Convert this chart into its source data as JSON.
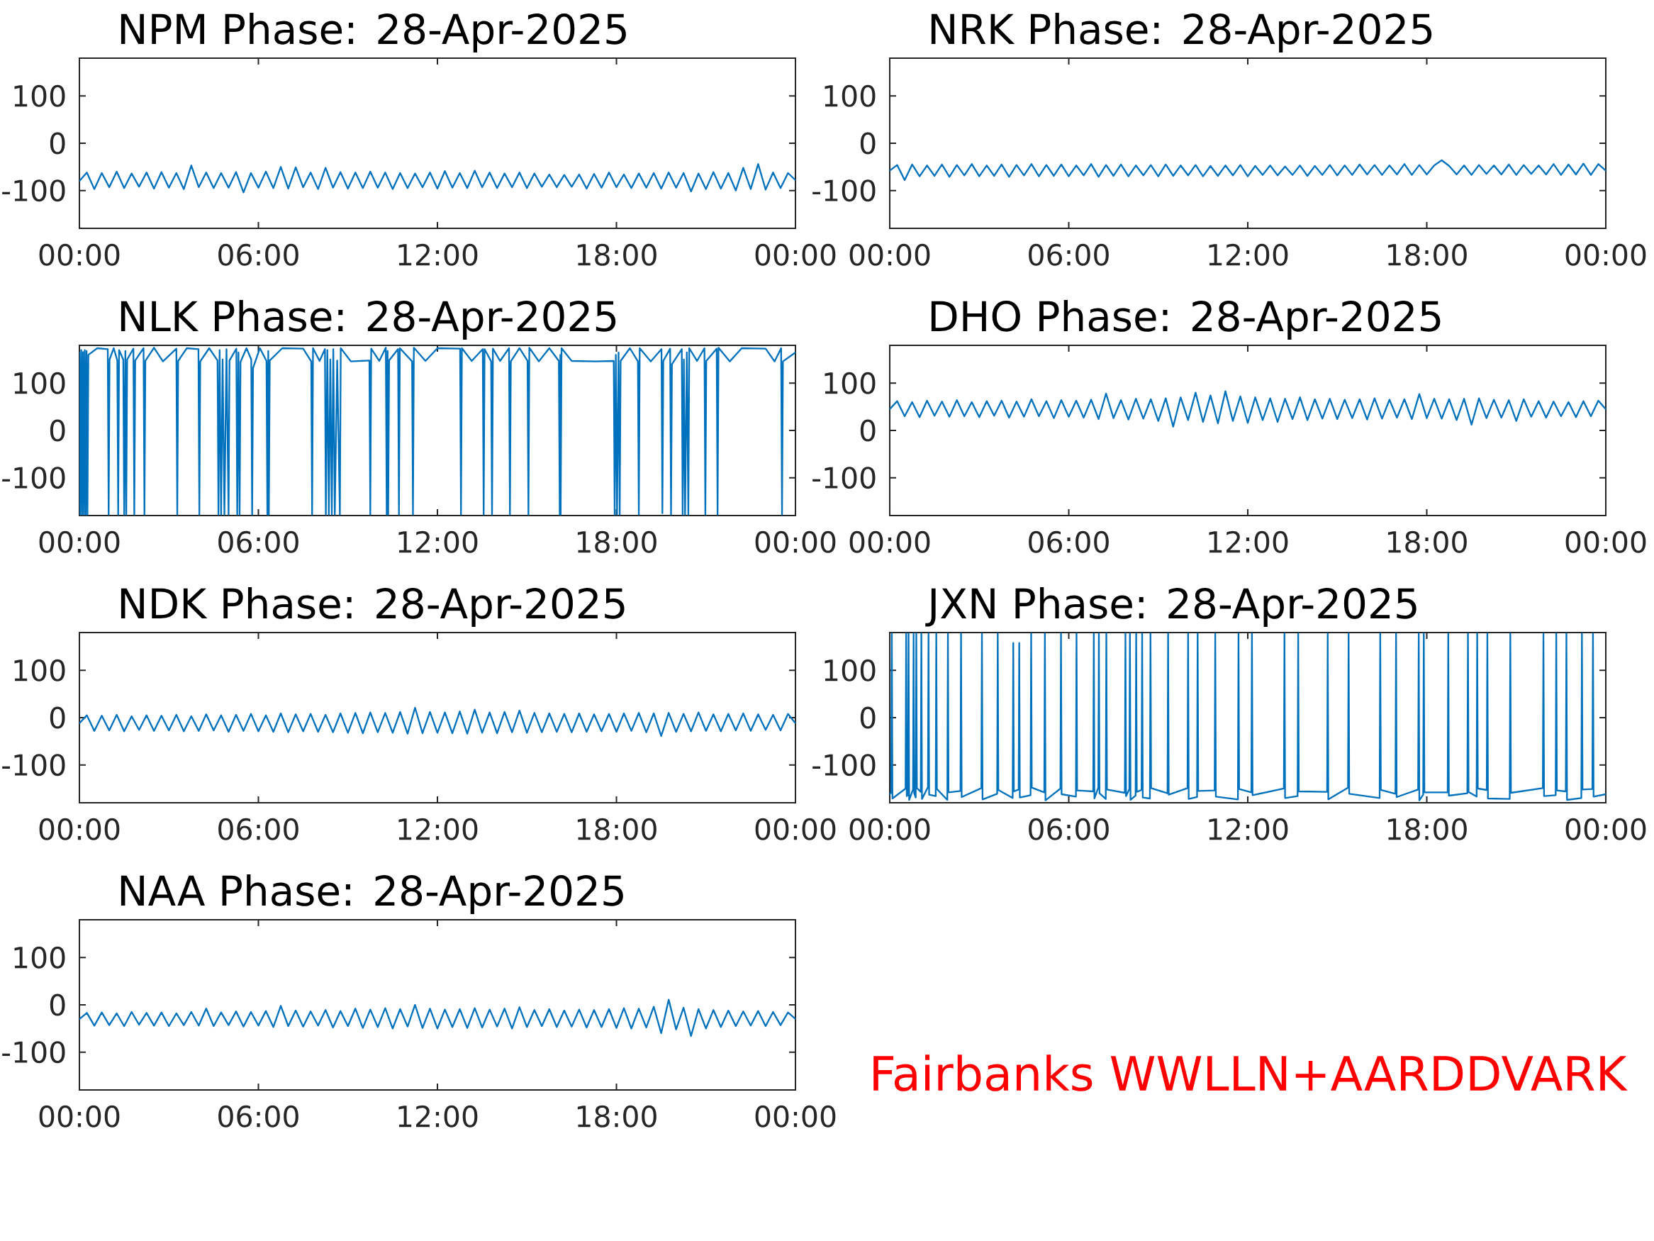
{
  "chart_data": [
    {
      "type": "line",
      "title": "NPM Phase: 28-Apr-2025",
      "color": "#0072bd",
      "xlim": [
        0,
        24
      ],
      "xticks": [
        {
          "value": 0,
          "label": "00:00"
        },
        {
          "value": 6,
          "label": "06:00"
        },
        {
          "value": 12,
          "label": "12:00"
        },
        {
          "value": 18,
          "label": "18:00"
        },
        {
          "value": 24,
          "label": "00:00"
        }
      ],
      "ylim": [
        -180,
        180
      ],
      "yticks": [
        -100,
        0,
        100
      ],
      "x": [
        0,
        0.25,
        0.5,
        0.75,
        1,
        1.25,
        1.5,
        1.75,
        2,
        2.25,
        2.5,
        2.75,
        3,
        3.25,
        3.5,
        3.75,
        4,
        4.25,
        4.5,
        4.75,
        5,
        5.25,
        5.5,
        5.75,
        6,
        6.25,
        6.5,
        6.75,
        7,
        7.25,
        7.5,
        7.75,
        8,
        8.25,
        8.5,
        8.75,
        9,
        9.25,
        9.5,
        9.75,
        10,
        10.25,
        10.5,
        10.75,
        11,
        11.25,
        11.5,
        11.75,
        12,
        12.25,
        12.5,
        12.75,
        13,
        13.25,
        13.5,
        13.75,
        14,
        14.25,
        14.5,
        14.75,
        15,
        15.25,
        15.5,
        15.75,
        16,
        16.25,
        16.5,
        16.75,
        17,
        17.25,
        17.5,
        17.75,
        18,
        18.25,
        18.5,
        18.75,
        19,
        19.25,
        19.5,
        19.75,
        20,
        20.25,
        20.5,
        20.75,
        21,
        21.25,
        21.5,
        21.75,
        22,
        22.25,
        22.5,
        22.75,
        23,
        23.25,
        23.5,
        23.75,
        24
      ],
      "values": [
        -80,
        -62,
        -97,
        -63,
        -93,
        -60,
        -95,
        -64,
        -92,
        -62,
        -96,
        -61,
        -94,
        -63,
        -97,
        -47,
        -93,
        -62,
        -95,
        -63,
        -94,
        -61,
        -104,
        -63,
        -94,
        -60,
        -95,
        -50,
        -96,
        -51,
        -93,
        -62,
        -97,
        -52,
        -94,
        -61,
        -96,
        -62,
        -95,
        -60,
        -94,
        -62,
        -97,
        -63,
        -95,
        -64,
        -93,
        -62,
        -96,
        -59,
        -94,
        -63,
        -95,
        -58,
        -93,
        -62,
        -95,
        -64,
        -93,
        -62,
        -95,
        -64,
        -92,
        -66,
        -93,
        -67,
        -92,
        -66,
        -96,
        -65,
        -94,
        -62,
        -93,
        -66,
        -95,
        -64,
        -94,
        -63,
        -96,
        -62,
        -94,
        -63,
        -102,
        -64,
        -97,
        -61,
        -96,
        -63,
        -100,
        -52,
        -97,
        -44,
        -98,
        -62,
        -95,
        -63,
        -78
      ]
    },
    {
      "type": "line",
      "title": "NRK Phase: 28-Apr-2025",
      "color": "#0072bd",
      "xlim": [
        0,
        24
      ],
      "xticks": [
        {
          "value": 0,
          "label": "00:00"
        },
        {
          "value": 6,
          "label": "06:00"
        },
        {
          "value": 12,
          "label": "12:00"
        },
        {
          "value": 18,
          "label": "18:00"
        },
        {
          "value": 24,
          "label": "00:00"
        }
      ],
      "ylim": [
        -180,
        180
      ],
      "yticks": [
        -100,
        0,
        100
      ],
      "x": [
        0,
        0.25,
        0.5,
        0.75,
        1,
        1.25,
        1.5,
        1.75,
        2,
        2.25,
        2.5,
        2.75,
        3,
        3.25,
        3.5,
        3.75,
        4,
        4.25,
        4.5,
        4.75,
        5,
        5.25,
        5.5,
        5.75,
        6,
        6.25,
        6.5,
        6.75,
        7,
        7.25,
        7.5,
        7.75,
        8,
        8.25,
        8.5,
        8.75,
        9,
        9.25,
        9.5,
        9.75,
        10,
        10.25,
        10.5,
        10.75,
        11,
        11.25,
        11.5,
        11.75,
        12,
        12.25,
        12.5,
        12.75,
        13,
        13.25,
        13.5,
        13.75,
        14,
        14.25,
        14.5,
        14.75,
        15,
        15.25,
        15.5,
        15.75,
        16,
        16.25,
        16.5,
        16.75,
        17,
        17.25,
        17.5,
        17.75,
        18,
        18.25,
        18.5,
        18.75,
        19,
        19.25,
        19.5,
        19.75,
        20,
        20.25,
        20.5,
        20.75,
        21,
        21.25,
        21.5,
        21.75,
        22,
        22.25,
        22.5,
        22.75,
        23,
        23.25,
        23.5,
        23.75,
        24
      ],
      "values": [
        -58,
        -46,
        -78,
        -45,
        -70,
        -47,
        -69,
        -45,
        -71,
        -46,
        -68,
        -44,
        -70,
        -47,
        -69,
        -45,
        -71,
        -46,
        -68,
        -44,
        -70,
        -46,
        -69,
        -45,
        -70,
        -47,
        -68,
        -44,
        -71,
        -46,
        -69,
        -45,
        -70,
        -47,
        -68,
        -46,
        -70,
        -45,
        -69,
        -47,
        -68,
        -46,
        -70,
        -48,
        -69,
        -47,
        -68,
        -46,
        -70,
        -48,
        -67,
        -47,
        -68,
        -49,
        -67,
        -47,
        -69,
        -48,
        -67,
        -46,
        -68,
        -47,
        -67,
        -45,
        -66,
        -46,
        -67,
        -47,
        -66,
        -44,
        -67,
        -46,
        -66,
        -47,
        -36,
        -48,
        -66,
        -47,
        -67,
        -46,
        -65,
        -47,
        -66,
        -45,
        -67,
        -46,
        -65,
        -47,
        -66,
        -44,
        -67,
        -45,
        -66,
        -43,
        -67,
        -44,
        -58
      ]
    },
    {
      "type": "line",
      "title": "NLK Phase: 28-Apr-2025",
      "color": "#0072bd",
      "xlim": [
        0,
        24
      ],
      "xticks": [
        {
          "value": 0,
          "label": "00:00"
        },
        {
          "value": 6,
          "label": "06:00"
        },
        {
          "value": 12,
          "label": "12:00"
        },
        {
          "value": 18,
          "label": "18:00"
        },
        {
          "value": 24,
          "label": "00:00"
        }
      ],
      "ylim": [
        -180,
        180
      ],
      "yticks": [
        -100,
        0,
        100
      ],
      "x": [
        0,
        0.03,
        0.06,
        0.09,
        0.12,
        0.15,
        0.18,
        0.21,
        0.24,
        0.27,
        0.3,
        0.6,
        0.95,
        0.98,
        1.01,
        1.15,
        1.27,
        1.3,
        1.33,
        1.47,
        1.5,
        1.54,
        1.57,
        1.6,
        1.81,
        1.84,
        1.87,
        2.15,
        2.18,
        2.21,
        2.5,
        2.8,
        3.25,
        3.28,
        3.31,
        3.6,
        3.99,
        4.02,
        4.05,
        4.35,
        4.63,
        4.66,
        4.7,
        4.75,
        4.8,
        4.86,
        4.93,
        5.0,
        5.03,
        5.26,
        5.29,
        5.33,
        5.37,
        5.4,
        5.6,
        5.76,
        5.79,
        5.82,
        6.05,
        6.27,
        6.3,
        6.33,
        6.35,
        6.38,
        6.8,
        7.5,
        7.77,
        7.8,
        7.83,
        8.05,
        8.23,
        8.26,
        8.31,
        8.36,
        8.41,
        8.46,
        8.51,
        8.56,
        8.64,
        8.73,
        8.76,
        9.1,
        9.72,
        9.75,
        9.78,
        10.05,
        10.27,
        10.3,
        10.33,
        10.35,
        10.38,
        10.68,
        10.71,
        10.74,
        11.15,
        11.18,
        11.21,
        11.6,
        12.0,
        12.76,
        12.79,
        12.82,
        13.15,
        13.52,
        13.55,
        13.58,
        13.8,
        13.83,
        13.86,
        14.1,
        14.4,
        14.43,
        14.46,
        14.75,
        15.02,
        15.05,
        15.08,
        15.4,
        15.75,
        16.07,
        16.1,
        16.12,
        16.13,
        16.16,
        16.5,
        17.3,
        17.91,
        17.94,
        17.98,
        18.02,
        18.07,
        18.11,
        18.14,
        18.45,
        18.72,
        18.75,
        18.78,
        19.15,
        19.51,
        19.54,
        19.57,
        19.8,
        19.83,
        19.86,
        20.19,
        20.22,
        20.26,
        20.3,
        20.36,
        20.41,
        20.44,
        20.7,
        20.95,
        20.98,
        21.01,
        21.36,
        21.39,
        21.42,
        21.8,
        22.2,
        23.0,
        23.3,
        23.52,
        23.55,
        23.58,
        24
      ],
      "values": [
        165,
        -178,
        170,
        -178,
        166,
        -178,
        170,
        -178,
        168,
        -178,
        160,
        174,
        172,
        -178,
        150,
        174,
        148,
        -178,
        170,
        150,
        -178,
        168,
        -178,
        150,
        173,
        -178,
        148,
        174,
        -178,
        147,
        175,
        146,
        173,
        -178,
        147,
        174,
        172,
        -178,
        146,
        174,
        148,
        -178,
        170,
        -178,
        150,
        -178,
        172,
        -178,
        148,
        173,
        -178,
        165,
        -178,
        145,
        174,
        150,
        -178,
        132,
        174,
        147,
        -178,
        168,
        -178,
        148,
        174,
        173,
        146,
        -178,
        174,
        147,
        172,
        -178,
        170,
        -178,
        150,
        -178,
        172,
        -178,
        148,
        -178,
        174,
        146,
        148,
        -178,
        173,
        147,
        175,
        -178,
        168,
        -178,
        148,
        172,
        -178,
        174,
        146,
        -178,
        175,
        147,
        174,
        173,
        -178,
        174,
        147,
        172,
        -178,
        172,
        146,
        -178,
        173,
        147,
        174,
        -178,
        146,
        174,
        147,
        -178,
        175,
        146,
        174,
        147,
        -178,
        160,
        -178,
        174,
        147,
        146,
        147,
        -178,
        160,
        -178,
        165,
        -178,
        147,
        174,
        146,
        -178,
        174,
        146,
        172,
        -175,
        147,
        173,
        -178,
        140,
        172,
        -178,
        150,
        -178,
        165,
        -178,
        174,
        147,
        174,
        -178,
        147,
        173,
        -178,
        175,
        146,
        174,
        173,
        146,
        174,
        -178,
        146,
        165
      ]
    },
    {
      "type": "line",
      "title": "DHO Phase: 28-Apr-2025",
      "color": "#0072bd",
      "xlim": [
        0,
        24
      ],
      "xticks": [
        {
          "value": 0,
          "label": "00:00"
        },
        {
          "value": 6,
          "label": "06:00"
        },
        {
          "value": 12,
          "label": "12:00"
        },
        {
          "value": 18,
          "label": "18:00"
        },
        {
          "value": 24,
          "label": "00:00"
        }
      ],
      "ylim": [
        -180,
        180
      ],
      "yticks": [
        -100,
        0,
        100
      ],
      "x": [
        0,
        0.25,
        0.5,
        0.75,
        1,
        1.25,
        1.5,
        1.75,
        2,
        2.25,
        2.5,
        2.75,
        3,
        3.25,
        3.5,
        3.75,
        4,
        4.25,
        4.5,
        4.75,
        5,
        5.25,
        5.5,
        5.75,
        6,
        6.25,
        6.5,
        6.75,
        7,
        7.25,
        7.5,
        7.75,
        8,
        8.25,
        8.5,
        8.75,
        9,
        9.25,
        9.5,
        9.75,
        10,
        10.25,
        10.5,
        10.75,
        11,
        11.25,
        11.5,
        11.75,
        12,
        12.25,
        12.5,
        12.75,
        13,
        13.25,
        13.5,
        13.75,
        14,
        14.25,
        14.5,
        14.75,
        15,
        15.25,
        15.5,
        15.75,
        16,
        16.25,
        16.5,
        16.75,
        17,
        17.25,
        17.5,
        17.75,
        18,
        18.25,
        18.5,
        18.75,
        19,
        19.25,
        19.5,
        19.75,
        20,
        20.25,
        20.5,
        20.75,
        21,
        21.25,
        21.5,
        21.75,
        22,
        22.25,
        22.5,
        22.75,
        23,
        23.25,
        23.5,
        23.75,
        24
      ],
      "values": [
        45,
        62,
        30,
        60,
        28,
        63,
        31,
        61,
        29,
        64,
        30,
        60,
        28,
        62,
        31,
        63,
        27,
        61,
        29,
        66,
        30,
        62,
        26,
        64,
        29,
        63,
        27,
        65,
        24,
        78,
        26,
        64,
        23,
        67,
        25,
        66,
        20,
        68,
        8,
        70,
        22,
        80,
        18,
        74,
        15,
        83,
        20,
        72,
        16,
        70,
        22,
        68,
        18,
        67,
        24,
        70,
        22,
        66,
        25,
        67,
        24,
        65,
        26,
        66,
        23,
        68,
        25,
        65,
        27,
        66,
        24,
        77,
        26,
        67,
        25,
        66,
        22,
        67,
        12,
        68,
        26,
        65,
        27,
        64,
        20,
        66,
        29,
        62,
        27,
        61,
        30,
        60,
        28,
        62,
        30,
        63,
        45
      ]
    },
    {
      "type": "line",
      "title": "NDK Phase: 28-Apr-2025",
      "color": "#0072bd",
      "xlim": [
        0,
        24
      ],
      "xticks": [
        {
          "value": 0,
          "label": "00:00"
        },
        {
          "value": 6,
          "label": "06:00"
        },
        {
          "value": 12,
          "label": "12:00"
        },
        {
          "value": 18,
          "label": "18:00"
        },
        {
          "value": 24,
          "label": "00:00"
        }
      ],
      "ylim": [
        -180,
        180
      ],
      "yticks": [
        -100,
        0,
        100
      ],
      "x": [
        0,
        0.25,
        0.5,
        0.75,
        1,
        1.25,
        1.5,
        1.75,
        2,
        2.25,
        2.5,
        2.75,
        3,
        3.25,
        3.5,
        3.75,
        4,
        4.25,
        4.5,
        4.75,
        5,
        5.25,
        5.5,
        5.75,
        6,
        6.25,
        6.5,
        6.75,
        7,
        7.25,
        7.5,
        7.75,
        8,
        8.25,
        8.5,
        8.75,
        9,
        9.25,
        9.5,
        9.75,
        10,
        10.25,
        10.5,
        10.75,
        11,
        11.25,
        11.5,
        11.75,
        12,
        12.25,
        12.5,
        12.75,
        13,
        13.25,
        13.5,
        13.75,
        14,
        14.25,
        14.5,
        14.75,
        15,
        15.25,
        15.5,
        15.75,
        16,
        16.25,
        16.5,
        16.75,
        17,
        17.25,
        17.5,
        17.75,
        18,
        18.25,
        18.5,
        18.75,
        19,
        19.25,
        19.5,
        19.75,
        20,
        20.25,
        20.5,
        20.75,
        21,
        21.25,
        21.5,
        21.75,
        22,
        22.25,
        22.5,
        22.75,
        23,
        23.25,
        23.5,
        23.75,
        24
      ],
      "values": [
        -12,
        5,
        -28,
        4,
        -27,
        6,
        -29,
        3,
        -26,
        5,
        -28,
        4,
        -27,
        6,
        -29,
        3,
        -28,
        7,
        -27,
        5,
        -30,
        6,
        -28,
        8,
        -29,
        5,
        -30,
        9,
        -31,
        7,
        -29,
        8,
        -30,
        6,
        -31,
        9,
        -32,
        10,
        -33,
        11,
        -31,
        10,
        -32,
        12,
        -34,
        21,
        -33,
        12,
        -32,
        11,
        -33,
        13,
        -34,
        17,
        -32,
        11,
        -33,
        12,
        -31,
        15,
        -32,
        10,
        -31,
        9,
        -30,
        8,
        -31,
        9,
        -30,
        7,
        -29,
        8,
        -30,
        9,
        -28,
        10,
        -31,
        9,
        -39,
        10,
        -30,
        8,
        -29,
        11,
        -28,
        7,
        -29,
        8,
        -27,
        9,
        -28,
        7,
        -26,
        6,
        -27,
        8,
        -12
      ]
    },
    {
      "type": "line",
      "title": "JXN Phase: 28-Apr-2025",
      "color": "#0072bd",
      "xlim": [
        0,
        24
      ],
      "xticks": [
        {
          "value": 0,
          "label": "00:00"
        },
        {
          "value": 6,
          "label": "06:00"
        },
        {
          "value": 12,
          "label": "12:00"
        },
        {
          "value": 18,
          "label": "18:00"
        },
        {
          "value": 24,
          "label": "00:00"
        }
      ],
      "ylim": [
        -180,
        180
      ],
      "yticks": [
        -100,
        0,
        100
      ],
      "x": [
        0,
        0.05,
        0.07,
        0.09,
        0.53,
        0.55,
        0.57,
        0.61,
        0.63,
        0.65,
        0.78,
        0.8,
        0.82,
        0.87,
        0.89,
        0.91,
        1.04,
        1.06,
        1.08,
        1.28,
        1.3,
        1.32,
        1.54,
        1.56,
        1.58,
        1.93,
        1.95,
        1.97,
        2.37,
        2.39,
        2.41,
        3.07,
        3.09,
        3.11,
        3.6,
        3.62,
        3.64,
        4.12,
        4.14,
        4.16,
        4.32,
        4.34,
        4.36,
        4.72,
        4.74,
        4.76,
        5.18,
        5.2,
        5.22,
        5.72,
        5.74,
        5.76,
        6.24,
        6.26,
        6.28,
        6.82,
        6.84,
        6.86,
        6.99,
        7.01,
        7.03,
        7.24,
        7.26,
        7.28,
        7.88,
        7.9,
        7.92,
        8.03,
        8.05,
        8.07,
        8.24,
        8.26,
        8.28,
        8.44,
        8.46,
        8.48,
        8.72,
        8.74,
        8.76,
        9.31,
        9.33,
        9.35,
        9.98,
        10,
        10.02,
        10.3,
        10.32,
        10.34,
        10.89,
        10.91,
        10.93,
        11.67,
        11.69,
        11.71,
        12.12,
        12.14,
        12.16,
        13.21,
        13.23,
        13.25,
        13.67,
        13.69,
        13.71,
        14.66,
        14.68,
        14.7,
        15.36,
        15.38,
        15.4,
        16.42,
        16.44,
        16.46,
        16.95,
        16.97,
        16.99,
        17.71,
        17.73,
        17.75,
        17.88,
        17.9,
        17.92,
        18.7,
        18.72,
        18.74,
        19.36,
        19.38,
        19.4,
        19.67,
        19.69,
        19.71,
        20.01,
        20.03,
        20.05,
        20.78,
        20.8,
        20.82,
        21.89,
        21.91,
        21.93,
        22.32,
        22.34,
        22.36,
        22.66,
        22.68,
        22.7,
        23.18,
        23.2,
        23.22,
        23.55,
        23.57,
        23.59,
        24
      ],
      "values": [
        -162,
        -158,
        178,
        -171,
        -150,
        178,
        -166,
        -163,
        178,
        -174,
        -152,
        178,
        -160,
        -169,
        178,
        -149,
        -157,
        178,
        -172,
        -147,
        178,
        -163,
        -166,
        178,
        -151,
        -174,
        178,
        -158,
        -155,
        178,
        -168,
        -149,
        178,
        -173,
        -161,
        178,
        -153,
        -170,
        158,
        -156,
        -152,
        158,
        -169,
        -164,
        178,
        -148,
        -158,
        178,
        -175,
        -150,
        178,
        -162,
        -167,
        178,
        -154,
        -156,
        178,
        -171,
        -148,
        178,
        -160,
        -172,
        178,
        -152,
        -159,
        178,
        -166,
        -151,
        178,
        -174,
        -165,
        178,
        -157,
        -153,
        178,
        -169,
        -171,
        178,
        -149,
        -160,
        178,
        -163,
        -149,
        178,
        -172,
        -168,
        178,
        -155,
        -154,
        178,
        -167,
        -173,
        178,
        -151,
        -158,
        178,
        -164,
        -150,
        178,
        -170,
        -166,
        178,
        -156,
        -157,
        178,
        -173,
        -148,
        178,
        -161,
        -170,
        178,
        -153,
        -161,
        178,
        -168,
        -152,
        178,
        -175,
        -163,
        178,
        -158,
        -158,
        178,
        -165,
        -160,
        178,
        -157,
        -167,
        178,
        -150,
        -153,
        178,
        -171,
        -172,
        178,
        -159,
        -149,
        178,
        -166,
        -164,
        178,
        -154,
        -156,
        178,
        -174,
        -170,
        178,
        -152,
        -151,
        178,
        -167,
        -162
      ]
    },
    {
      "type": "line",
      "title": "NAA Phase: 28-Apr-2025",
      "color": "#0072bd",
      "xlim": [
        0,
        24
      ],
      "xticks": [
        {
          "value": 0,
          "label": "00:00"
        },
        {
          "value": 6,
          "label": "06:00"
        },
        {
          "value": 12,
          "label": "12:00"
        },
        {
          "value": 18,
          "label": "18:00"
        },
        {
          "value": 24,
          "label": "00:00"
        }
      ],
      "ylim": [
        -180,
        180
      ],
      "yticks": [
        -100,
        0,
        100
      ],
      "x": [
        0,
        0.25,
        0.5,
        0.75,
        1,
        1.25,
        1.5,
        1.75,
        2,
        2.25,
        2.5,
        2.75,
        3,
        3.25,
        3.5,
        3.75,
        4,
        4.25,
        4.5,
        4.75,
        5,
        5.25,
        5.5,
        5.75,
        6,
        6.25,
        6.5,
        6.75,
        7,
        7.25,
        7.5,
        7.75,
        8,
        8.25,
        8.5,
        8.75,
        9,
        9.25,
        9.5,
        9.75,
        10,
        10.25,
        10.5,
        10.75,
        11,
        11.25,
        11.5,
        11.75,
        12,
        12.25,
        12.5,
        12.75,
        13,
        13.25,
        13.5,
        13.75,
        14,
        14.25,
        14.5,
        14.75,
        15,
        15.25,
        15.5,
        15.75,
        16,
        16.25,
        16.5,
        16.75,
        17,
        17.25,
        17.5,
        17.75,
        18,
        18.25,
        18.5,
        18.75,
        19,
        19.25,
        19.5,
        19.75,
        20,
        20.25,
        20.5,
        20.75,
        21,
        21.25,
        21.5,
        21.75,
        22,
        22.25,
        22.5,
        22.75,
        23,
        23.25,
        23.5,
        23.75,
        24
      ],
      "values": [
        -30,
        -17,
        -44,
        -16,
        -43,
        -18,
        -45,
        -15,
        -42,
        -17,
        -44,
        -16,
        -45,
        -18,
        -43,
        -15,
        -44,
        -8,
        -45,
        -16,
        -43,
        -14,
        -46,
        -15,
        -44,
        -13,
        -47,
        -2,
        -45,
        -12,
        -46,
        -14,
        -44,
        -11,
        -48,
        -13,
        -45,
        -8,
        -49,
        -10,
        -47,
        -7,
        -50,
        -9,
        -46,
        0,
        -49,
        -8,
        -50,
        -10,
        -47,
        -9,
        -49,
        -7,
        -48,
        -10,
        -46,
        -8,
        -50,
        -5,
        -47,
        -11,
        -45,
        -9,
        -47,
        -12,
        -46,
        -10,
        -48,
        -11,
        -47,
        -9,
        -49,
        -7,
        -50,
        -8,
        -48,
        -4,
        -60,
        11,
        -52,
        -6,
        -66,
        -9,
        -50,
        -11,
        -47,
        -12,
        -45,
        -14,
        -44,
        -13,
        -45,
        -15,
        -43,
        -16,
        -30
      ]
    },
    {
      "type": "other",
      "annotations": [
        "Fairbanks WWLLN+AARDDVARK"
      ],
      "color": "#ff0000"
    }
  ]
}
